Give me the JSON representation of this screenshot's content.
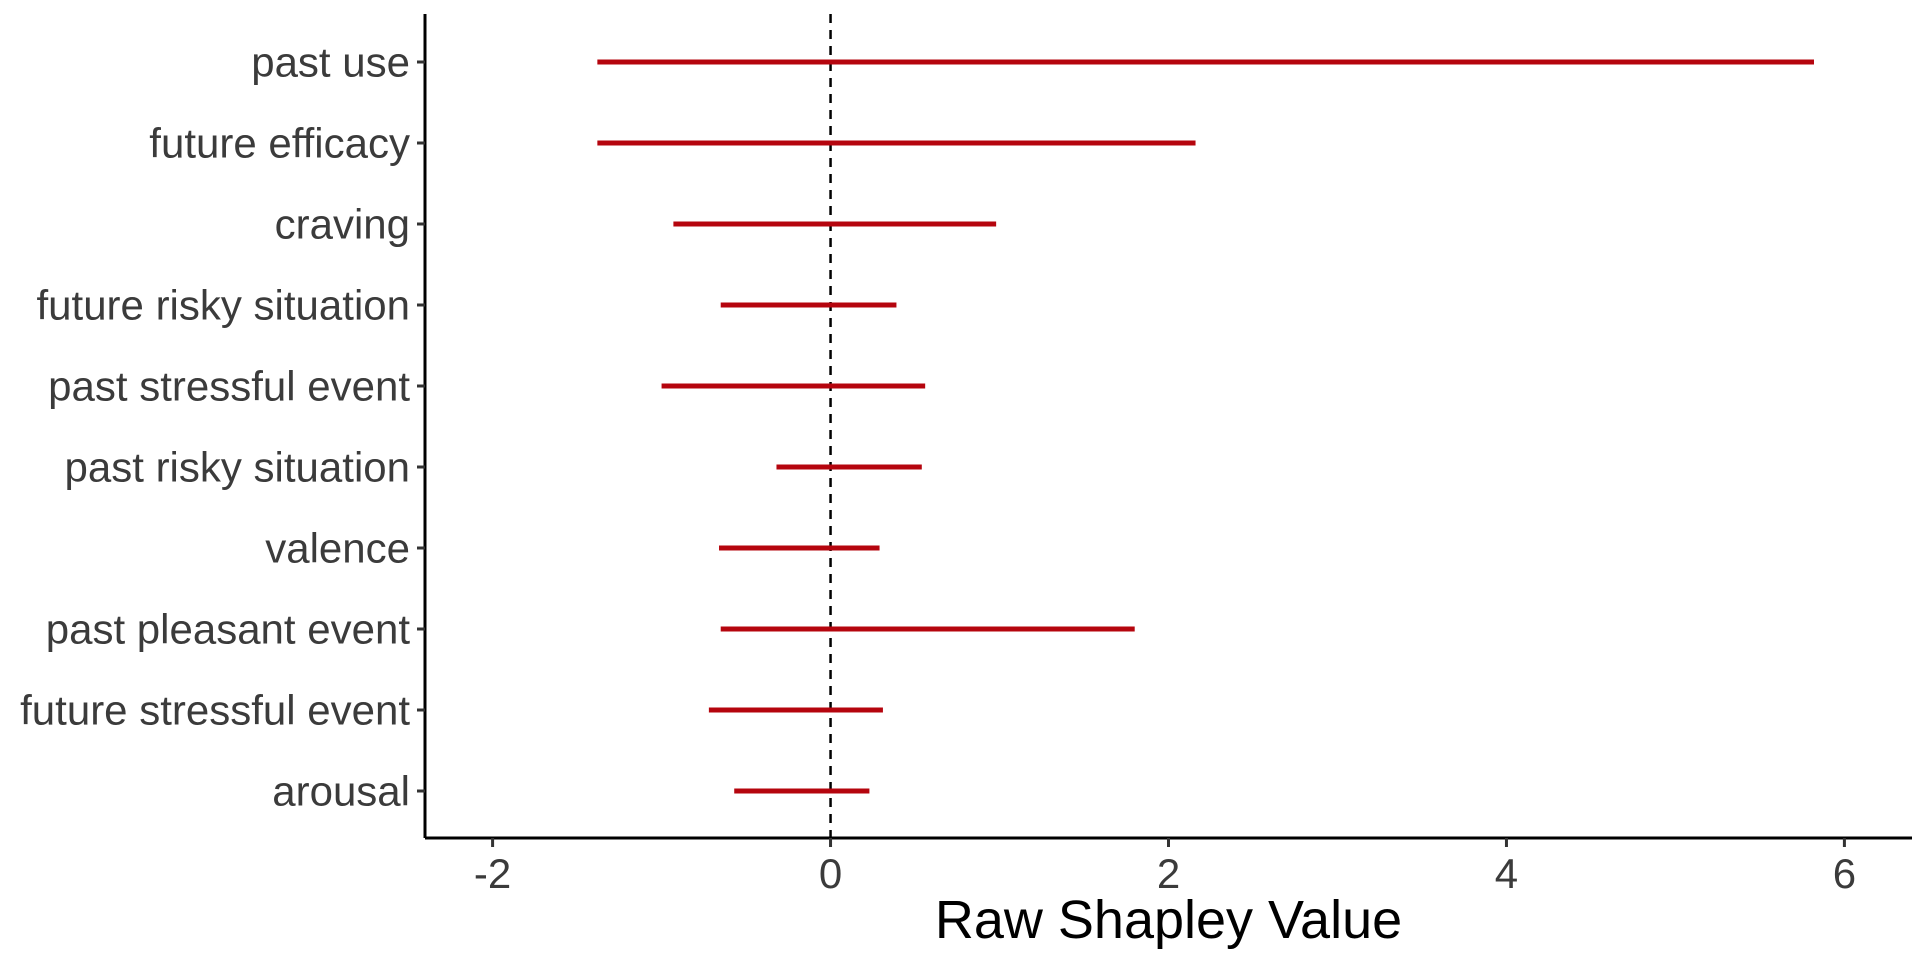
{
  "chart_data": {
    "type": "interval",
    "title": "",
    "xlabel": "Raw Shapley Value",
    "ylabel": "",
    "xlim": [
      -2.4,
      6.4
    ],
    "x_ticks": [
      -2,
      0,
      2,
      4,
      6
    ],
    "x_tick_labels": [
      "-2",
      "0",
      "2",
      "4",
      "6"
    ],
    "reference_line": {
      "x": 0,
      "style": "dashed"
    },
    "grid": false,
    "legend": "none",
    "color": "#b5050e",
    "categories": [
      "past use",
      "future efficacy",
      "craving",
      "future risky situation",
      "past stressful event",
      "past risky situation",
      "valence",
      "past pleasant event",
      "future stressful event",
      "arousal"
    ],
    "intervals": [
      {
        "low": -1.38,
        "high": 5.82
      },
      {
        "low": -1.38,
        "high": 2.16
      },
      {
        "low": -0.93,
        "high": 0.98
      },
      {
        "low": -0.65,
        "high": 0.39
      },
      {
        "low": -1.0,
        "high": 0.56
      },
      {
        "low": -0.32,
        "high": 0.54
      },
      {
        "low": -0.66,
        "high": 0.29
      },
      {
        "low": -0.65,
        "high": 1.8
      },
      {
        "low": -0.72,
        "high": 0.31
      },
      {
        "low": -0.57,
        "high": 0.23
      }
    ]
  }
}
